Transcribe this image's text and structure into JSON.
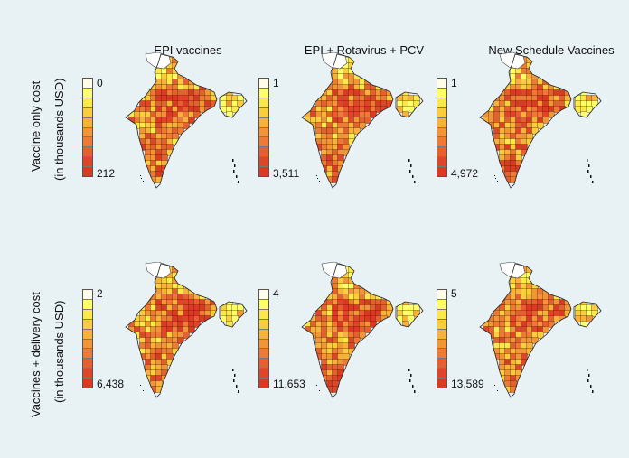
{
  "column_titles": [
    "EPI vaccines",
    "EPI + Rotavirus + PCV",
    "New Schedule Vaccines"
  ],
  "row_titles": [
    {
      "line1": "Vaccine only cost",
      "line2": "(in thousands USD)"
    },
    {
      "line1": "Vaccines + delivery cost",
      "line2": "(in thousands USD)"
    }
  ],
  "legends": [
    [
      {
        "min": "0",
        "max": "212"
      },
      {
        "min": "1",
        "max": "3,511"
      },
      {
        "min": "1",
        "max": "4,972"
      }
    ],
    [
      {
        "min": "2",
        "max": "6,438"
      },
      {
        "min": "4",
        "max": "11,653"
      },
      {
        "min": "5",
        "max": "13,589"
      }
    ]
  ],
  "colors": {
    "scale": [
      "#fffde8",
      "#ffff66",
      "#fde84a",
      "#fbcd3c",
      "#f9b13a",
      "#f39536",
      "#ee7a33",
      "#e65f2e",
      "#df4529",
      "#d93a22"
    ],
    "background": "#e8f1f4",
    "district_border": "#3a2a10"
  }
}
